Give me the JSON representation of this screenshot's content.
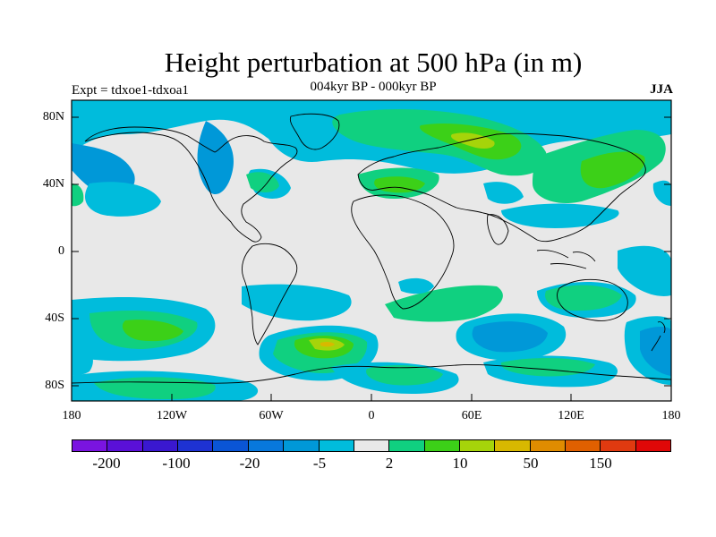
{
  "title": "Height perturbation at 500 hPa (in m)",
  "experiment": "Expt = tdxoe1-tdxoa1",
  "period": "004kyr BP - 000kyr BP",
  "season": "JJA",
  "lat_labels": [
    "80N",
    "40N",
    "0",
    "40S",
    "80S"
  ],
  "lon_labels": [
    "180",
    "120W",
    "60W",
    "0",
    "60E",
    "120E",
    "180"
  ],
  "colorbar": {
    "colors": [
      "#7a14e0",
      "#5a10d8",
      "#3a18d0",
      "#1e32d2",
      "#0a55d6",
      "#0878dc",
      "#0098d8",
      "#00bcdc",
      "#e8e8e8",
      "#10d080",
      "#3cd018",
      "#a6d40a",
      "#d8b800",
      "#e08c00",
      "#e06000",
      "#e03a10",
      "#e00808"
    ],
    "tick_labels": [
      "-200",
      "-100",
      "-20",
      "-5",
      "2",
      "10",
      "50",
      "150"
    ]
  },
  "colors": {
    "background": "#e8e8e8",
    "cyan": "#00bcdc",
    "blue": "#0098d8",
    "green": "#10d080",
    "light_green": "#3cd018",
    "yellow_green": "#a6d40a",
    "yellow": "#d8b800"
  }
}
